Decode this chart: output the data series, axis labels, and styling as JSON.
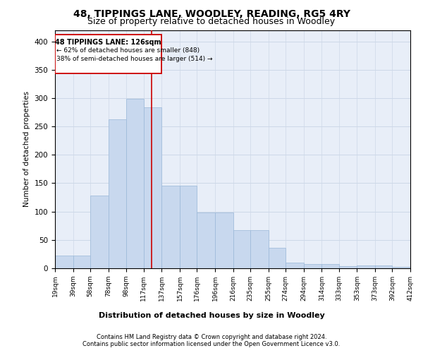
{
  "title1": "48, TIPPINGS LANE, WOODLEY, READING, RG5 4RY",
  "title2": "Size of property relative to detached houses in Woodley",
  "xlabel": "Distribution of detached houses by size in Woodley",
  "ylabel": "Number of detached properties",
  "footer1": "Contains HM Land Registry data © Crown copyright and database right 2024.",
  "footer2": "Contains public sector information licensed under the Open Government Licence v3.0.",
  "property_label": "48 TIPPINGS LANE: 126sqm",
  "annotation_line1": "← 62% of detached houses are smaller (848)",
  "annotation_line2": "38% of semi-detached houses are larger (514) →",
  "bin_labels": [
    "19sqm",
    "39sqm",
    "58sqm",
    "78sqm",
    "98sqm",
    "117sqm",
    "137sqm",
    "157sqm",
    "176sqm",
    "196sqm",
    "216sqm",
    "235sqm",
    "255sqm",
    "274sqm",
    "294sqm",
    "314sqm",
    "333sqm",
    "353sqm",
    "373sqm",
    "392sqm",
    "412sqm"
  ],
  "bar_heights": [
    22,
    22,
    128,
    263,
    299,
    284,
    146,
    146,
    98,
    98,
    67,
    67,
    36,
    10,
    7,
    7,
    4,
    5,
    5,
    2
  ],
  "bar_color": "#c8d8ee",
  "bar_edge_color": "#9ab8d8",
  "vline_x": 126,
  "vline_color": "#cc0000",
  "ylim": [
    0,
    420
  ],
  "yticks": [
    0,
    50,
    100,
    150,
    200,
    250,
    300,
    350,
    400
  ],
  "grid_color": "#cdd8e8",
  "bg_color": "#e8eef8",
  "title1_fontsize": 10,
  "title2_fontsize": 9,
  "footer_fontsize": 6
}
